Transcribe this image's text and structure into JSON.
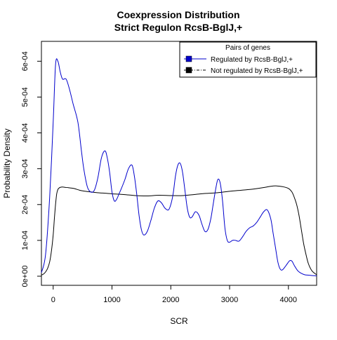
{
  "chart_data": {
    "type": "line",
    "title": "Coexpression Distribution",
    "subtitle": "Strict Regulon RcsB-BglJ,+",
    "xlabel": "SCR",
    "ylabel": "Probability Density",
    "xlim": [
      -200,
      4480
    ],
    "ylim": [
      0,
      0.00063
    ],
    "x_ticks": [
      0,
      1000,
      2000,
      3000,
      4000
    ],
    "x_tick_labels": [
      "0",
      "1000",
      "2000",
      "3000",
      "4000"
    ],
    "y_ticks": [
      0,
      0.0001,
      0.0002,
      0.0003,
      0.0004,
      0.0005,
      0.0006
    ],
    "y_tick_labels": [
      "0e+00",
      "1e-04",
      "2e-04",
      "3e-04",
      "4e-04",
      "5e-04",
      "6e-04"
    ],
    "grid": false,
    "legend": {
      "title": "Pairs of genes",
      "position": "top-right",
      "entries": [
        {
          "label": "Regulated by  RcsB-BglJ,+",
          "color": "#0000cc",
          "fill": "#0000cc"
        },
        {
          "label": "Not regulated by  RcsB-BglJ,+",
          "color": "#000000",
          "fill": "#000000"
        }
      ]
    },
    "series": [
      {
        "name": "Regulated by  RcsB-BglJ,+",
        "color": "#0000cc",
        "x": [
          -200,
          -130,
          -60,
          0,
          40,
          80,
          120,
          160,
          220,
          280,
          340,
          420,
          480,
          520,
          580,
          640,
          700,
          760,
          820,
          880,
          920,
          960,
          1000,
          1040,
          1080,
          1120,
          1160,
          1220,
          1280,
          1340,
          1380,
          1420,
          1460,
          1500,
          1540,
          1600,
          1660,
          1720,
          1780,
          1840,
          1900,
          1960,
          2000,
          2040,
          2080,
          2120,
          2160,
          2200,
          2240,
          2280,
          2320,
          2360,
          2420,
          2480,
          2530,
          2580,
          2630,
          2680,
          2720,
          2760,
          2800,
          2840,
          2880,
          2920,
          2960,
          3000,
          3050,
          3100,
          3160,
          3220,
          3280,
          3340,
          3400,
          3460,
          3520,
          3580,
          3640,
          3700,
          3740,
          3780,
          3820,
          3860,
          3900,
          3960,
          4020,
          4060,
          4100,
          4160,
          4220,
          4280,
          4340,
          4400,
          4480
        ],
        "y": [
          1e-05,
          6e-05,
          0.00022,
          0.00043,
          0.00059,
          0.0006,
          0.00057,
          0.00055,
          0.00055,
          0.00052,
          0.00048,
          0.00043,
          0.00035,
          0.0003,
          0.00025,
          0.000235,
          0.00024,
          0.000275,
          0.00033,
          0.00035,
          0.00033,
          0.00029,
          0.000235,
          0.00021,
          0.000215,
          0.00023,
          0.000245,
          0.00027,
          0.0003,
          0.00031,
          0.00028,
          0.00023,
          0.00017,
          0.00013,
          0.000115,
          0.000125,
          0.000155,
          0.00019,
          0.00021,
          0.000205,
          0.00019,
          0.000185,
          0.0002,
          0.00023,
          0.00028,
          0.00031,
          0.000315,
          0.00029,
          0.00024,
          0.00019,
          0.000165,
          0.000165,
          0.00018,
          0.00017,
          0.000145,
          0.000125,
          0.00013,
          0.00016,
          0.0002,
          0.00024,
          0.00027,
          0.00026,
          0.00021,
          0.000135,
          0.0001,
          9.5e-05,
          0.0001,
          0.0001,
          9.8e-05,
          0.00011,
          0.000125,
          0.000135,
          0.00014,
          0.00015,
          0.000165,
          0.00018,
          0.000185,
          0.00016,
          0.00012,
          8e-05,
          4e-05,
          2e-05,
          1.8e-05,
          3e-05,
          4.3e-05,
          4.2e-05,
          3e-05,
          1.5e-05,
          8e-06,
          4e-06,
          3e-06,
          2e-06,
          1e-06
        ]
      },
      {
        "name": "Not regulated by  RcsB-BglJ,+",
        "color": "#000000",
        "x": [
          -200,
          -150,
          -100,
          -60,
          -30,
          0,
          20,
          40,
          60,
          80,
          100,
          120,
          160,
          200,
          260,
          350,
          450,
          550,
          650,
          750,
          850,
          1000,
          1200,
          1400,
          1600,
          1800,
          2000,
          2200,
          2400,
          2600,
          2800,
          3000,
          3200,
          3400,
          3600,
          3700,
          3800,
          3900,
          4000,
          4060,
          4100,
          4140,
          4180,
          4220,
          4260,
          4300,
          4340,
          4400,
          4480
        ],
        "y": [
          3e-06,
          8e-06,
          2e-05,
          4e-05,
          7e-05,
          0.000115,
          0.00016,
          0.0002,
          0.00023,
          0.000242,
          0.000246,
          0.000248,
          0.000249,
          0.000248,
          0.000247,
          0.000245,
          0.00024,
          0.000237,
          0.000235,
          0.000233,
          0.000232,
          0.00023,
          0.000228,
          0.000225,
          0.000224,
          0.000226,
          0.000225,
          0.000225,
          0.000228,
          0.000231,
          0.000233,
          0.000237,
          0.00024,
          0.000243,
          0.000248,
          0.000251,
          0.000252,
          0.00025,
          0.000245,
          0.000235,
          0.00022,
          0.0002,
          0.00017,
          0.00013,
          9e-05,
          6e-05,
          3.5e-05,
          1.5e-05,
          4e-06
        ]
      }
    ]
  }
}
